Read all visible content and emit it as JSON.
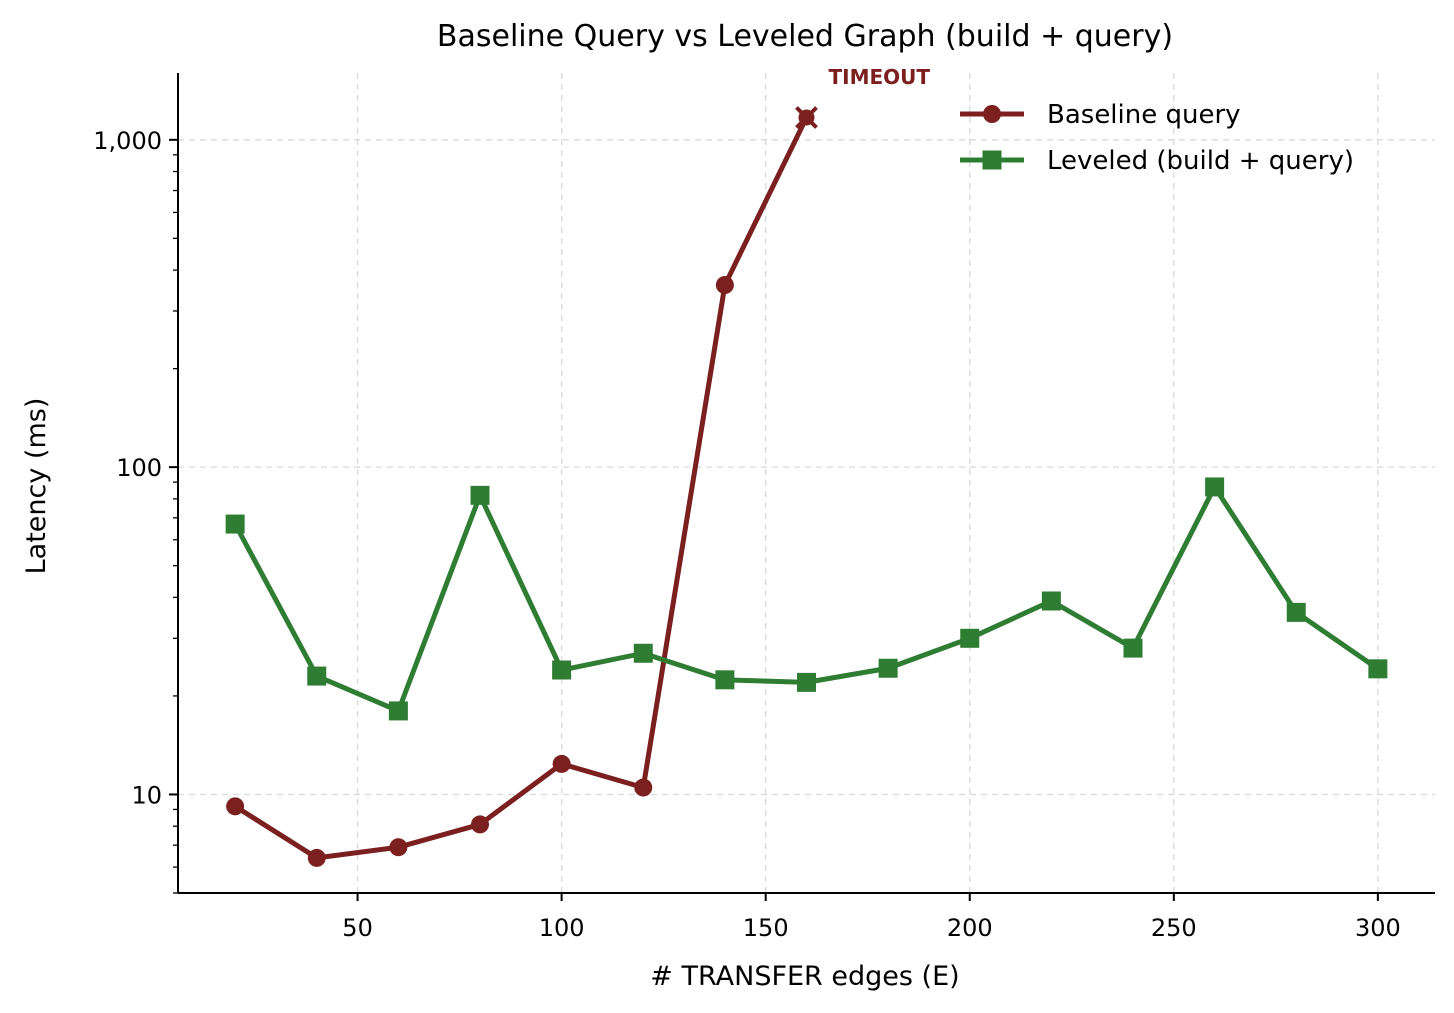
{
  "chart_data": {
    "type": "line",
    "title": "Baseline Query vs Leveled Graph (build + query)",
    "xlabel": "# TRANSFER edges (E)",
    "ylabel": "Latency (ms)",
    "xlim": [
      6,
      314
    ],
    "ylim": [
      5,
      1600
    ],
    "yscale": "log",
    "grid": true,
    "legend_position": "top-right",
    "x_ticks": [
      50,
      100,
      150,
      200,
      250,
      300
    ],
    "x_tick_labels": [
      "50",
      "100",
      "150",
      "200",
      "250",
      "300"
    ],
    "y_ticks": [
      10,
      100,
      1000
    ],
    "y_tick_labels": [
      "10",
      "100",
      "1,000"
    ],
    "series": [
      {
        "name": "Baseline query",
        "color": "#7b1f1f",
        "marker": "circle",
        "x": [
          20,
          40,
          60,
          80,
          100,
          120,
          140,
          160
        ],
        "y": [
          9.2,
          6.4,
          6.9,
          8.1,
          12.4,
          10.5,
          360,
          1170
        ]
      },
      {
        "name": "Leveled (build + query)",
        "color": "#2e7d32",
        "marker": "square",
        "x": [
          20,
          40,
          60,
          80,
          100,
          120,
          140,
          160,
          180,
          200,
          220,
          240,
          260,
          280,
          300
        ],
        "y": [
          67,
          23,
          18,
          82,
          24,
          27,
          22.4,
          22,
          24.3,
          30,
          39,
          28,
          87,
          36,
          24.2
        ]
      }
    ],
    "annotations": [
      {
        "text": "TIMEOUT",
        "x": 160,
        "y": 1170,
        "marker": "x",
        "color": "#7b1f1f"
      }
    ]
  }
}
